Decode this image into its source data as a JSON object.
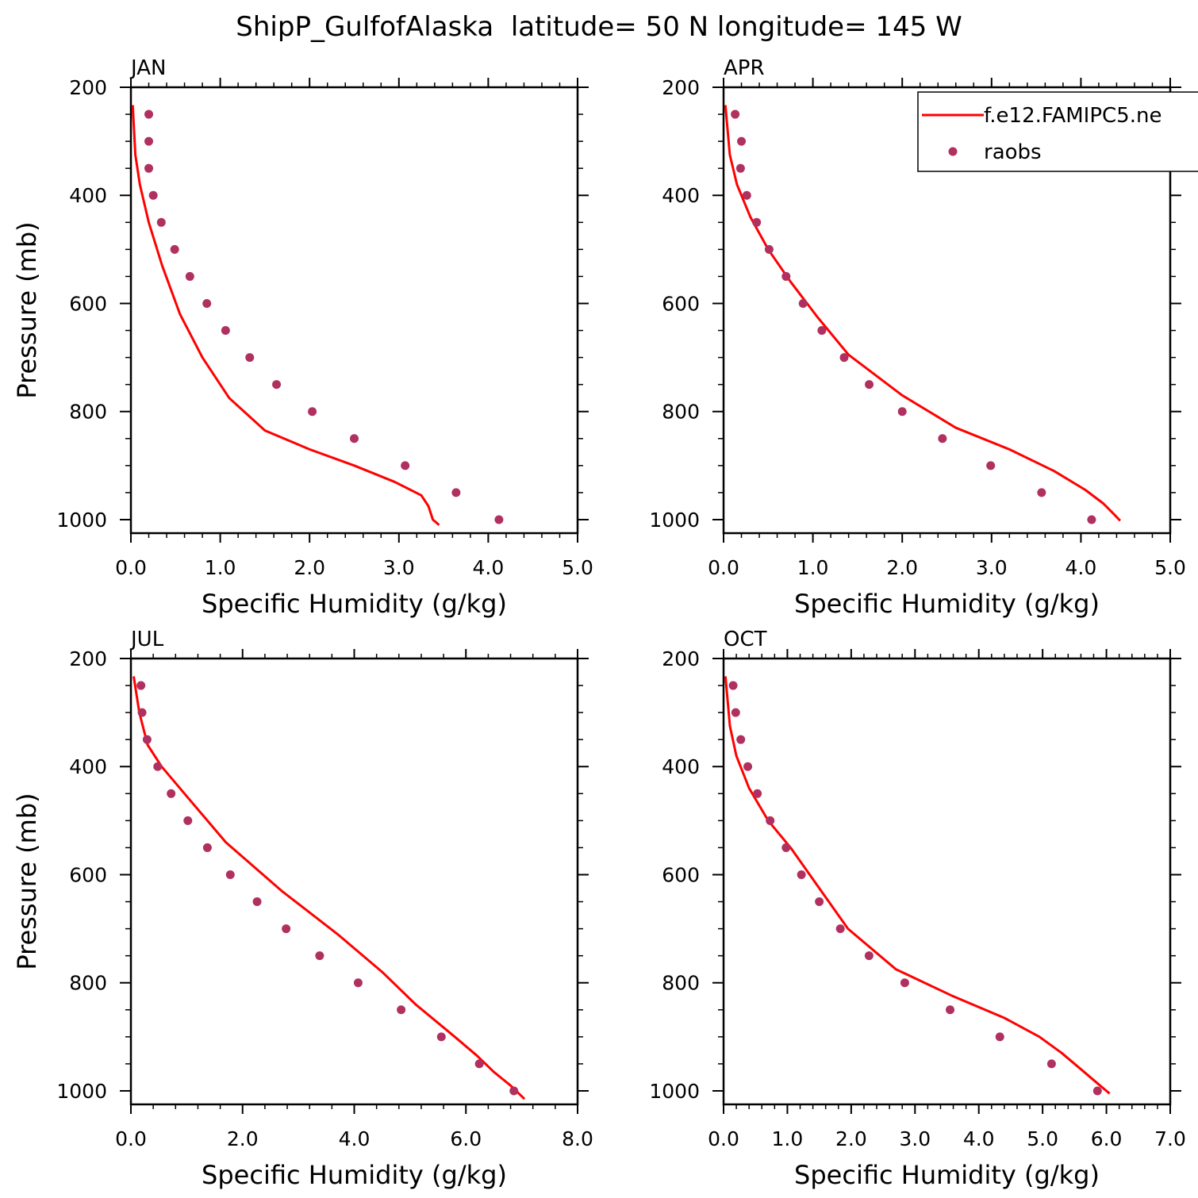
{
  "title": "ShipP_GulfofAlaska  latitude= 50 N longitude= 145 W",
  "legend": {
    "model_label": "f.e12.FAMIPC5.ne",
    "obs_label": "raobs",
    "placement": "top-right of APR panel"
  },
  "colors": {
    "model": "#ff0000",
    "obs": "#b03060",
    "axis": "#000000"
  },
  "chart_data": [
    {
      "type": "line",
      "panel": "JAN",
      "title": "JAN",
      "xlabel": "Specific Humidity (g/kg)",
      "ylabel": "Pressure (mb)",
      "xlim": [
        0,
        5
      ],
      "xticks": [
        "0.0",
        "1.0",
        "2.0",
        "3.0",
        "4.0",
        "5.0"
      ],
      "ylim": [
        200,
        1025
      ],
      "yticks": [
        "200",
        "400",
        "600",
        "800",
        "1000"
      ],
      "y_inverted": true,
      "series": [
        {
          "name": "f.e12.FAMIPC5.ne",
          "kind": "line",
          "x": [
            0.02,
            0.05,
            0.1,
            0.2,
            0.35,
            0.55,
            0.8,
            1.1,
            1.5,
            2.0,
            2.5,
            2.95,
            3.25,
            3.33,
            3.38,
            3.45
          ],
          "y": [
            233,
            325,
            380,
            450,
            530,
            620,
            700,
            775,
            835,
            870,
            900,
            930,
            955,
            975,
            1000,
            1010
          ]
        },
        {
          "name": "raobs",
          "kind": "scatter",
          "x": [
            0.2,
            0.2,
            0.2,
            0.25,
            0.34,
            0.49,
            0.66,
            0.85,
            1.06,
            1.33,
            1.63,
            2.03,
            2.5,
            3.07,
            3.64,
            4.12
          ],
          "y": [
            250,
            300,
            350,
            400,
            450,
            500,
            550,
            600,
            650,
            700,
            750,
            800,
            850,
            900,
            950,
            1000
          ]
        }
      ]
    },
    {
      "type": "line",
      "panel": "APR",
      "title": "APR",
      "xlabel": "Specific Humidity (g/kg)",
      "ylabel": "",
      "xlim": [
        0,
        5
      ],
      "xticks": [
        "0.0",
        "1.0",
        "2.0",
        "3.0",
        "4.0",
        "5.0"
      ],
      "ylim": [
        200,
        1025
      ],
      "yticks": [
        "200",
        "400",
        "600",
        "800",
        "1000"
      ],
      "y_inverted": true,
      "series": [
        {
          "name": "f.e12.FAMIPC5.ne",
          "kind": "line",
          "x": [
            0.02,
            0.07,
            0.15,
            0.3,
            0.5,
            0.75,
            1.05,
            1.4,
            2.0,
            2.6,
            3.2,
            3.7,
            4.05,
            4.25,
            4.37,
            4.44
          ],
          "y": [
            233,
            325,
            380,
            440,
            500,
            560,
            625,
            695,
            770,
            830,
            870,
            910,
            945,
            970,
            990,
            1002
          ]
        },
        {
          "name": "raobs",
          "kind": "scatter",
          "x": [
            0.13,
            0.2,
            0.19,
            0.26,
            0.37,
            0.51,
            0.7,
            0.89,
            1.1,
            1.35,
            1.63,
            2.0,
            2.45,
            2.99,
            3.56,
            4.12
          ],
          "y": [
            250,
            300,
            350,
            400,
            450,
            500,
            550,
            600,
            650,
            700,
            750,
            800,
            850,
            900,
            950,
            1000
          ]
        }
      ]
    },
    {
      "type": "line",
      "panel": "JUL",
      "title": "JUL",
      "xlabel": "Specific Humidity (g/kg)",
      "ylabel": "Pressure (mb)",
      "xlim": [
        0,
        8
      ],
      "xticks": [
        "0.0",
        "2.0",
        "4.0",
        "6.0",
        "8.0"
      ],
      "ylim": [
        200,
        1025
      ],
      "yticks": [
        "200",
        "400",
        "600",
        "800",
        "1000"
      ],
      "y_inverted": true,
      "series": [
        {
          "name": "f.e12.FAMIPC5.ne",
          "kind": "line",
          "x": [
            0.05,
            0.15,
            0.3,
            0.55,
            1.0,
            1.7,
            2.7,
            3.7,
            4.5,
            5.1,
            5.8,
            6.2,
            6.5,
            6.8,
            6.95,
            7.05
          ],
          "y": [
            233,
            300,
            360,
            400,
            455,
            540,
            630,
            710,
            780,
            840,
            900,
            935,
            965,
            990,
            1005,
            1015
          ]
        },
        {
          "name": "raobs",
          "kind": "scatter",
          "x": [
            0.18,
            0.2,
            0.29,
            0.48,
            0.72,
            1.02,
            1.37,
            1.78,
            2.26,
            2.78,
            3.38,
            4.07,
            4.84,
            5.56,
            6.24,
            6.86
          ],
          "y": [
            250,
            300,
            350,
            400,
            450,
            500,
            550,
            600,
            650,
            700,
            750,
            800,
            850,
            900,
            950,
            1000
          ]
        }
      ]
    },
    {
      "type": "line",
      "panel": "OCT",
      "title": "OCT",
      "xlabel": "Specific Humidity (g/kg)",
      "ylabel": "",
      "xlim": [
        0,
        7
      ],
      "xticks": [
        "0.0",
        "1.0",
        "2.0",
        "3.0",
        "4.0",
        "5.0",
        "6.0",
        "7.0"
      ],
      "ylim": [
        200,
        1025
      ],
      "yticks": [
        "200",
        "400",
        "600",
        "800",
        "1000"
      ],
      "y_inverted": true,
      "series": [
        {
          "name": "f.e12.FAMIPC5.ne",
          "kind": "line",
          "x": [
            0.03,
            0.1,
            0.2,
            0.4,
            0.7,
            1.05,
            1.5,
            1.95,
            2.7,
            3.6,
            4.4,
            4.95,
            5.3,
            5.6,
            5.85,
            6.0,
            6.05
          ],
          "y": [
            233,
            325,
            380,
            440,
            500,
            550,
            625,
            700,
            775,
            825,
            865,
            900,
            930,
            960,
            985,
            1000,
            1005
          ]
        },
        {
          "name": "raobs",
          "kind": "scatter",
          "x": [
            0.15,
            0.19,
            0.27,
            0.38,
            0.53,
            0.73,
            0.98,
            1.22,
            1.5,
            1.83,
            2.28,
            2.84,
            3.55,
            4.33,
            5.14,
            5.86
          ],
          "y": [
            250,
            300,
            350,
            400,
            450,
            500,
            550,
            600,
            650,
            700,
            750,
            800,
            850,
            900,
            950,
            1000
          ]
        }
      ]
    }
  ]
}
